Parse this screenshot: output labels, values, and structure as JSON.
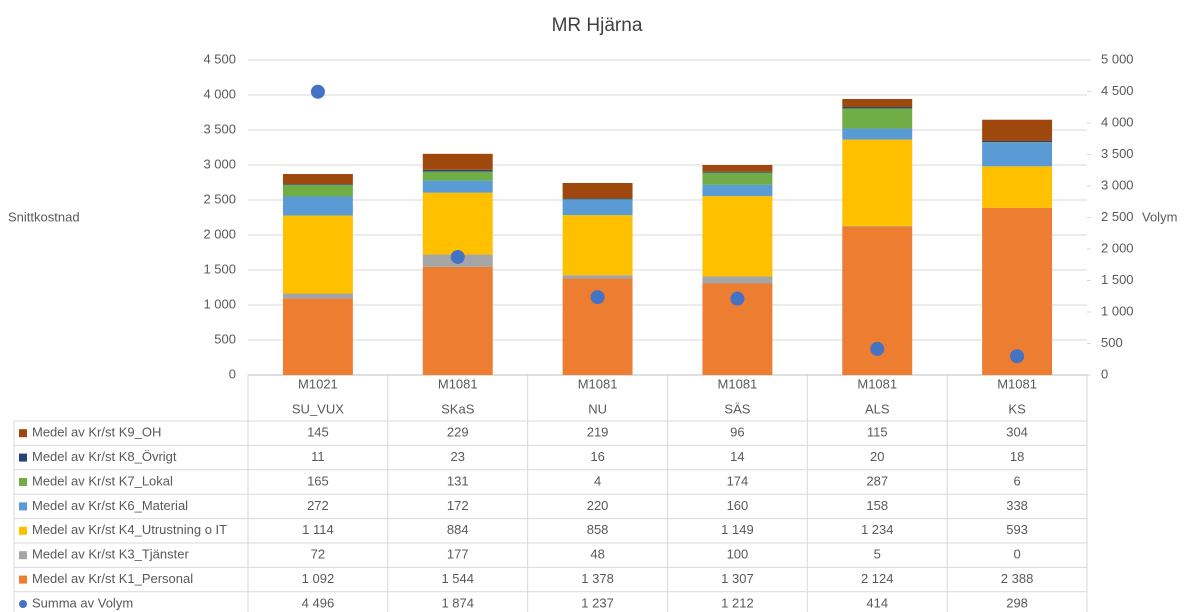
{
  "chart_data": {
    "type": "bar",
    "stacked": true,
    "title": "MR Hjärna",
    "ylabel": "Snittkostnad",
    "y2label": "Volym",
    "categories": [
      [
        "M1021",
        "SU_VUX"
      ],
      [
        "M1081",
        "SKaS"
      ],
      [
        "M1081",
        "NU"
      ],
      [
        "M1081",
        "SÄS"
      ],
      [
        "M1081",
        "ALS"
      ],
      [
        "M1081",
        "KS"
      ]
    ],
    "series": [
      {
        "name": "Medel av Kr/st K9_OH",
        "color": "#9e480e",
        "values": [
          145,
          229,
          219,
          96,
          115,
          304
        ]
      },
      {
        "name": "Medel av Kr/st K8_Övrigt",
        "color": "#264478",
        "values": [
          11,
          23,
          16,
          14,
          20,
          18
        ]
      },
      {
        "name": "Medel av Kr/st K7_Lokal",
        "color": "#70ad47",
        "values": [
          165,
          131,
          4,
          174,
          287,
          6
        ]
      },
      {
        "name": "Medel av Kr/st K6_Material",
        "color": "#5b9bd5",
        "values": [
          272,
          172,
          220,
          160,
          158,
          338
        ]
      },
      {
        "name": "Medel av Kr/st K4_Utrustning o IT",
        "color": "#ffc000",
        "values": [
          1114,
          884,
          858,
          1149,
          1234,
          593
        ],
        "value_labels": [
          "1 114",
          "884",
          "858",
          "1 149",
          "1 234",
          "593"
        ]
      },
      {
        "name": "Medel av Kr/st K3_Tjänster",
        "color": "#a5a5a5",
        "values": [
          72,
          177,
          48,
          100,
          5,
          0
        ]
      },
      {
        "name": "Medel av Kr/st K1_Personal",
        "color": "#ed7d31",
        "values": [
          1092,
          1544,
          1378,
          1307,
          2124,
          2388
        ],
        "value_labels": [
          "1 092",
          "1 544",
          "1 378",
          "1 307",
          "2 124",
          "2 388"
        ]
      },
      {
        "name": "Summa av Volym",
        "color": "#4472c4",
        "axis": "y2",
        "marker": "circle",
        "values": [
          4496,
          1874,
          1237,
          1212,
          414,
          298
        ],
        "value_labels": [
          "4 496",
          "1 874",
          "1 237",
          "1 212",
          "414",
          "298"
        ]
      }
    ],
    "ylim": [
      0,
      4500
    ],
    "yticks": [
      0,
      500,
      {
        "value": 1000,
        "label": "1 000"
      },
      {
        "value": 1500,
        "label": "1 500"
      },
      {
        "value": 2000,
        "label": "2 000"
      },
      {
        "value": 2500,
        "label": "2 500"
      },
      {
        "value": 3000,
        "label": "3 000"
      },
      {
        "value": 3500,
        "label": "3 500"
      },
      {
        "value": 4000,
        "label": "4 000"
      },
      {
        "value": 4500,
        "label": "4 500"
      }
    ],
    "y2lim": [
      0,
      5000
    ],
    "y2ticks": [
      0,
      500,
      {
        "value": 1000,
        "label": "1 000"
      },
      {
        "value": 1500,
        "label": "1 500"
      },
      {
        "value": 2000,
        "label": "2 000"
      },
      {
        "value": 2500,
        "label": "2 500"
      },
      {
        "value": 3000,
        "label": "3 000"
      },
      {
        "value": 3500,
        "label": "3 500"
      },
      {
        "value": 4000,
        "label": "4 000"
      },
      {
        "value": 4500,
        "label": "4 500"
      },
      {
        "value": 5000,
        "label": "5 000"
      }
    ],
    "grid": true
  }
}
